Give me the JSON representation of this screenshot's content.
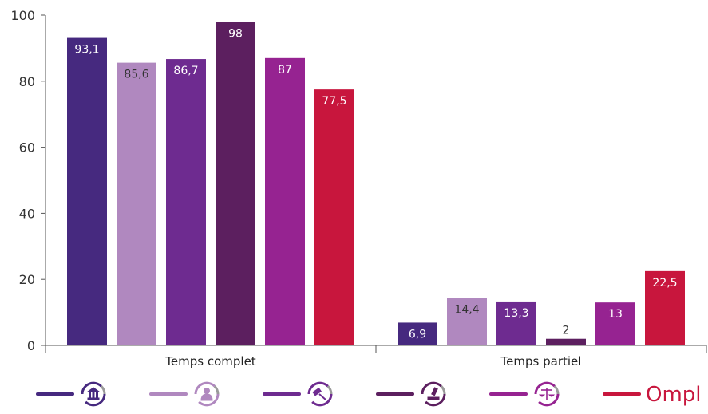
{
  "chart_data": {
    "type": "bar",
    "categories": [
      "Temps complet",
      "Temps partiel"
    ],
    "ylim": [
      0,
      100
    ],
    "yticks": [
      0,
      20,
      40,
      60,
      80,
      100
    ],
    "series": [
      {
        "icon": "bank-icon",
        "color": "#46297f",
        "values": [
          93.1,
          6.9
        ],
        "labels": [
          "93,1",
          "6,9"
        ],
        "label_color": "#ffffff"
      },
      {
        "icon": "user-icon",
        "color": "#b088bf",
        "values": [
          85.6,
          14.4
        ],
        "labels": [
          "85,6",
          "14,4"
        ],
        "label_color": "#333333"
      },
      {
        "icon": "gavel-icon",
        "color": "#6e2b90",
        "values": [
          86.7,
          13.3
        ],
        "labels": [
          "86,7",
          "13,3"
        ],
        "label_color": "#ffffff"
      },
      {
        "icon": "lab-icon",
        "color": "#5c1f5f",
        "values": [
          98,
          2
        ],
        "labels": [
          "98",
          "2"
        ],
        "label_color": "#ffffff"
      },
      {
        "icon": "scales-icon",
        "color": "#962391",
        "values": [
          87,
          13
        ],
        "labels": [
          "87",
          "13"
        ],
        "label_color": "#ffffff"
      },
      {
        "icon": "ompl-logo",
        "color": "#c8163d",
        "values": [
          77.5,
          22.5
        ],
        "labels": [
          "77,5",
          "22,5"
        ],
        "label_color": "#ffffff"
      }
    ],
    "legend": {
      "placement": "bottom",
      "ompl_text": "Ompl"
    },
    "grid": false
  }
}
